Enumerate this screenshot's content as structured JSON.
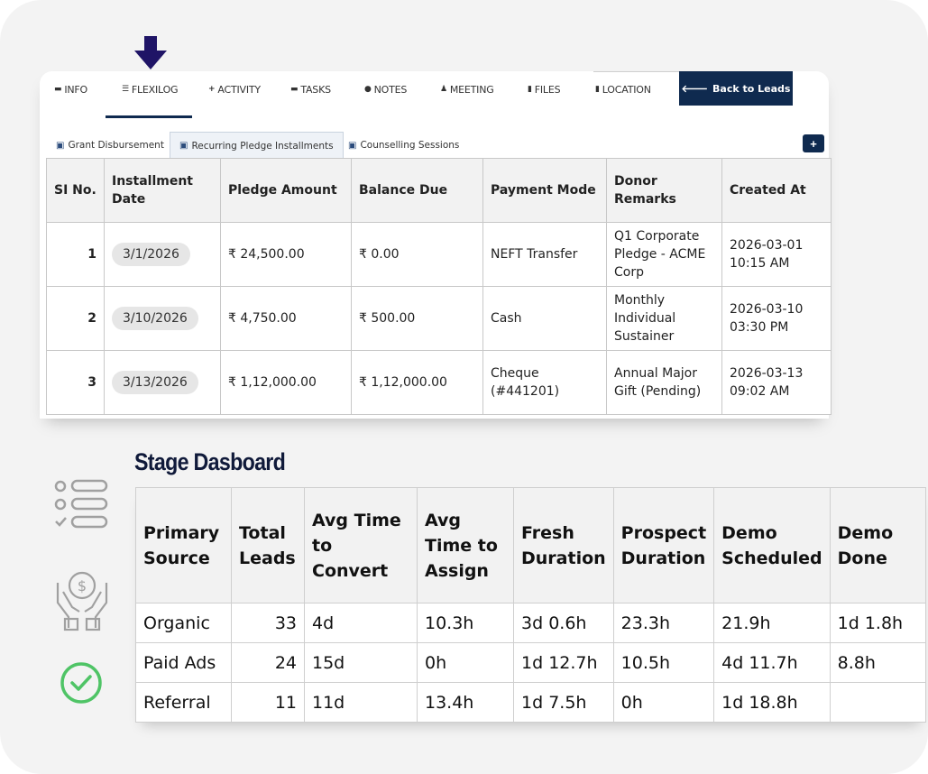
{
  "tabs": [
    {
      "label": "INFO",
      "icon": "list-icon"
    },
    {
      "label": "FLEXILOG",
      "icon": "stack-icon"
    },
    {
      "label": "ACTIVITY",
      "icon": "plus-icon"
    },
    {
      "label": "TASKS",
      "icon": "list-icon"
    },
    {
      "label": "NOTES",
      "icon": "comments-icon"
    },
    {
      "label": "MEETING",
      "icon": "users-icon"
    },
    {
      "label": "FILES",
      "icon": "file-icon"
    },
    {
      "label": "LOCATION",
      "icon": "file-icon"
    }
  ],
  "active_tab": "FLEXILOG",
  "back_button": "Back to Leads",
  "subtabs": [
    {
      "label": "Grant Disbursement"
    },
    {
      "label": "Recurring Pledge Installments"
    },
    {
      "label": "Counselling Sessions"
    }
  ],
  "active_subtab": "Recurring Pledge Installments",
  "add_button": "+",
  "pledge_table": {
    "headers": [
      "SI No.",
      "Installment Date",
      "Pledge Amount",
      "Balance Due",
      "Payment Mode",
      "Donor Remarks",
      "Created At"
    ],
    "rows": [
      {
        "si": "1",
        "date": "3/1/2026",
        "pledge": "₹ 24,500.00",
        "balance": "₹ 0.00",
        "mode": "NEFT Transfer",
        "remarks": "Q1 Corporate Pledge - ACME Corp",
        "created": "2026-03-01 10:15 AM"
      },
      {
        "si": "2",
        "date": "3/10/2026",
        "pledge": "₹ 4,750.00",
        "balance": "₹ 500.00",
        "mode": "Cash",
        "remarks": "Monthly Individual Sustainer",
        "created": "2026-03-10 03:30 PM"
      },
      {
        "si": "3",
        "date": "3/13/2026",
        "pledge": "₹ 1,12,000.00",
        "balance": "₹ 1,12,000.00",
        "mode": "Cheque (#441201)",
        "remarks": "Annual Major Gift (Pending)",
        "created": "2026-03-13 09:02 AM"
      }
    ]
  },
  "stage_title": "Stage Dasboard",
  "stage_table": {
    "headers": [
      "Primary Source",
      "Total Leads",
      "Avg Time to Convert",
      "Avg Time to Assign",
      "Fresh Duration",
      "Prospect Duration",
      "Demo Scheduled",
      "Demo Done"
    ],
    "rows": [
      [
        "Organic",
        "33",
        "4d",
        "10.3h",
        "3d 0.6h",
        "23.3h",
        "21.9h",
        "1d 1.8h"
      ],
      [
        "Paid Ads",
        "24",
        "15d",
        "0h",
        "1d 12.7h",
        "10.5h",
        "4d 11.7h",
        "8.8h"
      ],
      [
        "Referral",
        "11",
        "11d",
        "13.4h",
        "1d 7.5h",
        "0h",
        "1d 18.8h",
        ""
      ]
    ]
  },
  "colors": {
    "navy": "#0f2a4f",
    "arrow": "#1f1466",
    "check": "#4fc466",
    "icon_gray": "#a0a0a0"
  }
}
